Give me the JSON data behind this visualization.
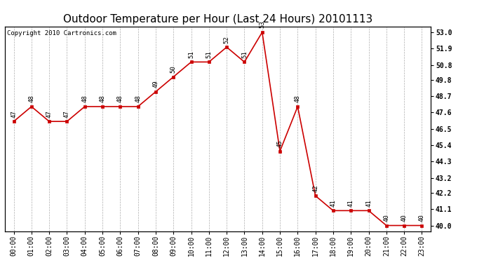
{
  "title": "Outdoor Temperature per Hour (Last 24 Hours) 20101113",
  "copyright": "Copyright 2010 Cartronics.com",
  "hours": [
    "00:00",
    "01:00",
    "02:00",
    "03:00",
    "04:00",
    "05:00",
    "06:00",
    "07:00",
    "08:00",
    "09:00",
    "10:00",
    "11:00",
    "12:00",
    "13:00",
    "14:00",
    "15:00",
    "16:00",
    "17:00",
    "18:00",
    "19:00",
    "20:00",
    "21:00",
    "22:00",
    "23:00"
  ],
  "values": [
    47,
    48,
    47,
    47,
    48,
    48,
    48,
    48,
    49,
    50,
    51,
    51,
    52,
    51,
    53,
    45,
    48,
    42,
    41,
    41,
    41,
    40,
    40,
    40
  ],
  "yticks_right": [
    40.0,
    41.1,
    42.2,
    43.2,
    44.3,
    45.4,
    46.5,
    47.6,
    48.7,
    49.8,
    50.8,
    51.9,
    53.0
  ],
  "line_color": "#cc0000",
  "marker_color": "#cc0000",
  "bg_color": "#ffffff",
  "grid_color": "#999999",
  "title_fontsize": 11,
  "label_fontsize": 6.5,
  "tick_fontsize": 7,
  "copyright_fontsize": 6.5,
  "ymin": 39.6,
  "ymax": 53.4
}
